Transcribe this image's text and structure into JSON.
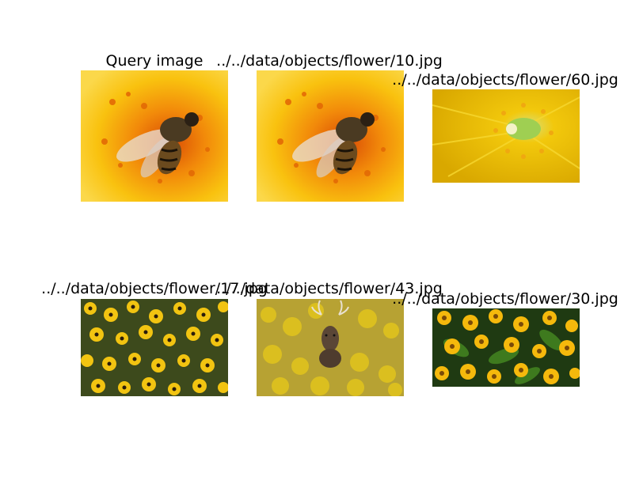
{
  "figure": {
    "panels": [
      {
        "title": "Query image",
        "image": "bee-on-yellow-flower-image"
      },
      {
        "title": "../../data/objects/flower/10.jpg",
        "image": "bee-on-yellow-flower-image"
      },
      {
        "title": "../../data/objects/flower/60.jpg",
        "image": "yellow-flower-closeup-image"
      },
      {
        "title": "../../data/objects/flower/17.jpg",
        "image": "yellow-daisy-field-image"
      },
      {
        "title": "../../data/objects/flower/43.jpg",
        "image": "deer-in-yellow-flowers-image"
      },
      {
        "title": "../../data/objects/flower/30.jpg",
        "image": "yellow-flowers-green-leaves-image"
      }
    ]
  }
}
